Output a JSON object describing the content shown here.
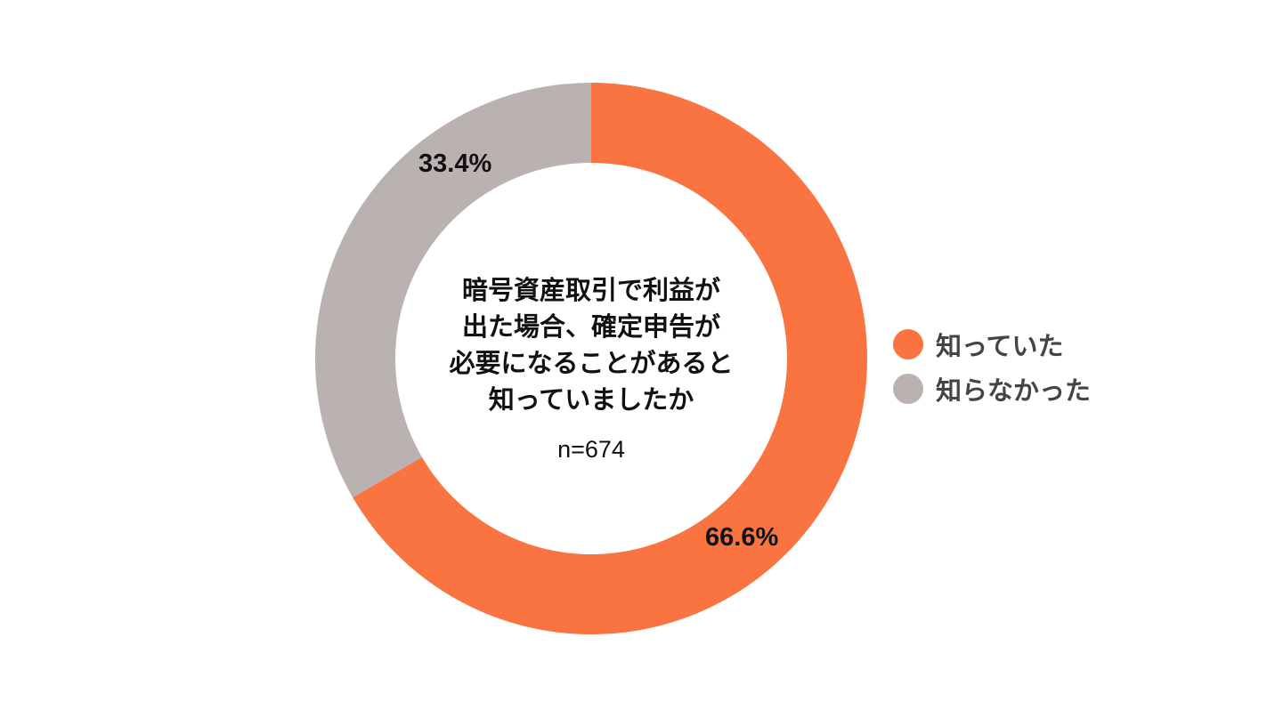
{
  "chart_data": {
    "type": "pie",
    "donut": true,
    "center_title_lines": [
      "暗号資産取引で利益が",
      "出た場合、確定申告が",
      "必要になることがあると",
      "知っていましたか"
    ],
    "center_note": "n=674",
    "series": [
      {
        "name": "知っていた",
        "value": 66.6,
        "label": "66.6%",
        "color": "#f97441"
      },
      {
        "name": "知らなかった",
        "value": 33.4,
        "label": "33.4%",
        "color": "#bab2b0"
      }
    ],
    "start": "12 o'clock",
    "direction": "clockwise",
    "legend_position": "right"
  }
}
